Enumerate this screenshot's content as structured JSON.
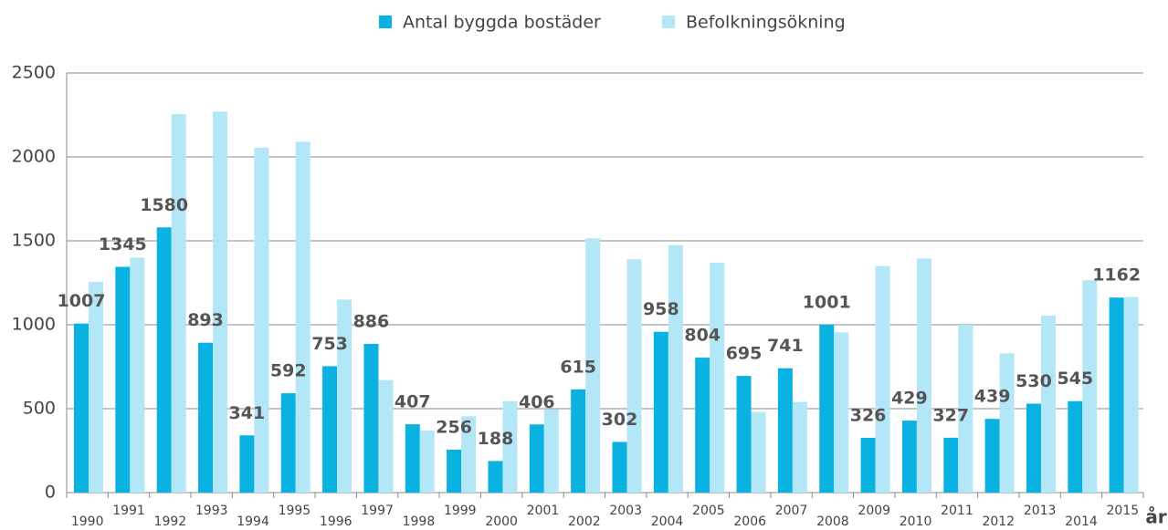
{
  "chart_data": {
    "type": "bar",
    "categories": [
      "1990",
      "1991",
      "1992",
      "1993",
      "1994",
      "1995",
      "1996",
      "1997",
      "1998",
      "1999",
      "2000",
      "2001",
      "2002",
      "2003",
      "2004",
      "2005",
      "2006",
      "2007",
      "2008",
      "2009",
      "2010",
      "2011",
      "2012",
      "2013",
      "2014",
      "2015"
    ],
    "series": [
      {
        "name": "Antal byggda bostäder",
        "color": "#0ab2e2",
        "values": [
          1007,
          1345,
          1580,
          893,
          341,
          592,
          753,
          886,
          407,
          256,
          188,
          406,
          615,
          302,
          958,
          804,
          695,
          741,
          1001,
          326,
          429,
          327,
          439,
          530,
          545,
          1162
        ]
      },
      {
        "name": "Befolkningsökning",
        "color": "#b3e7f7",
        "values": [
          1255,
          1400,
          2255,
          2270,
          2055,
          2090,
          1150,
          670,
          370,
          455,
          545,
          495,
          1515,
          1390,
          1475,
          1370,
          480,
          540,
          955,
          1350,
          1395,
          1000,
          830,
          1055,
          1265,
          1165
        ]
      }
    ],
    "x_label": "år",
    "ylim": [
      0,
      2500
    ],
    "yticks": [
      0,
      500,
      1000,
      1500,
      2000,
      2500
    ],
    "grid": true,
    "legend": "top"
  }
}
